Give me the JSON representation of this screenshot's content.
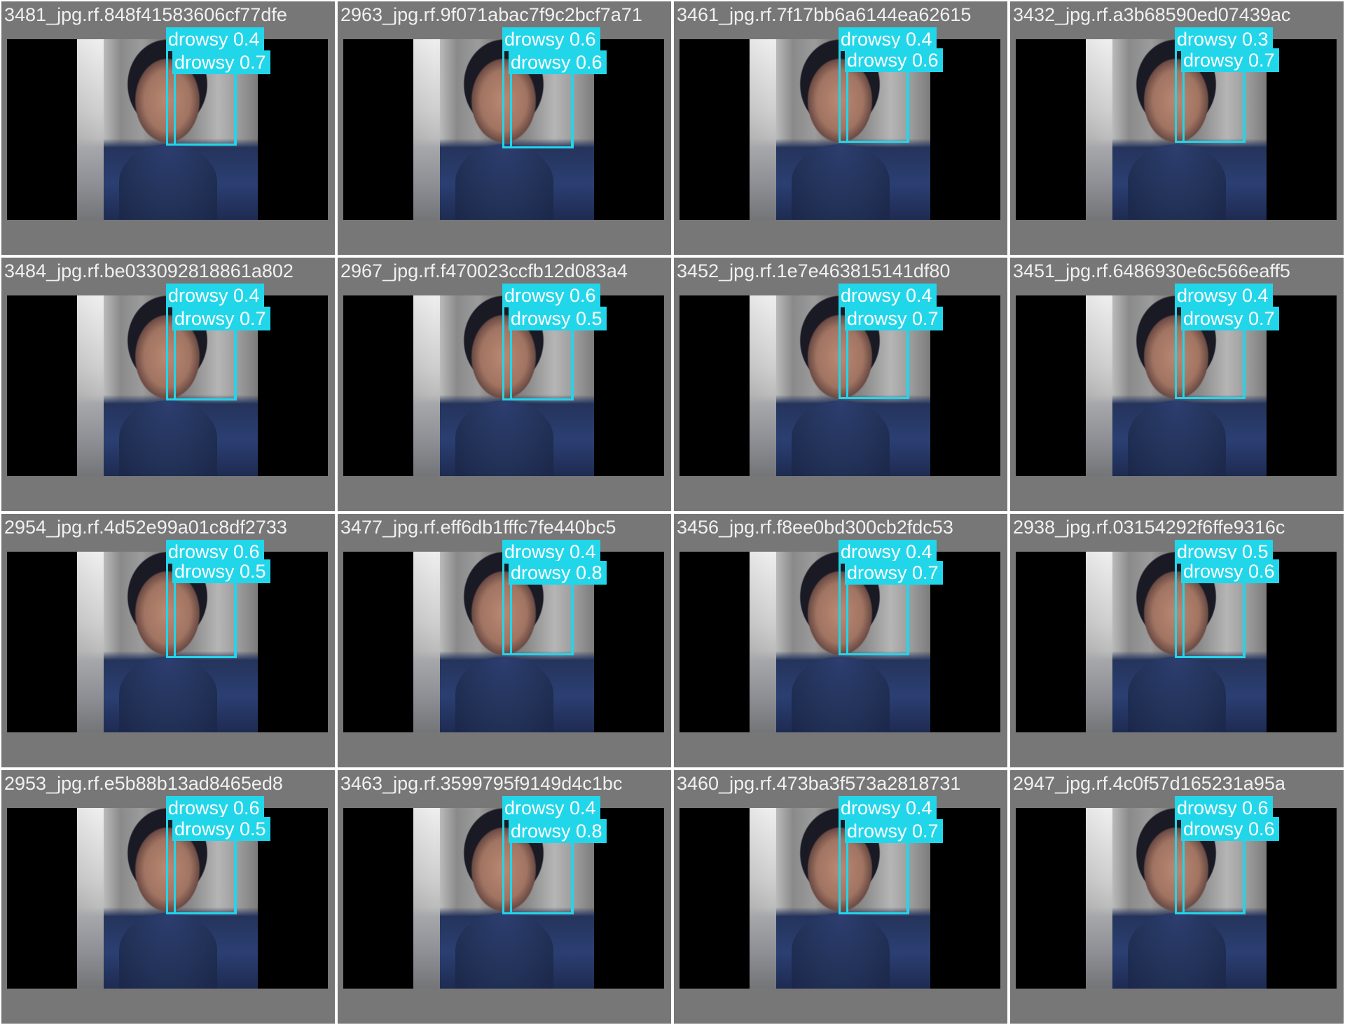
{
  "tiles": [
    {
      "filename": "3481_jpg.rf.848f41583606cf77dfe",
      "labels": [
        "drowsy 0.4",
        "drowsy 0.7"
      ]
    },
    {
      "filename": "2963_jpg.rf.9f071abac7f9c2bcf7a71",
      "labels": [
        "drowsy 0.6",
        "drowsy 0.6"
      ]
    },
    {
      "filename": "3461_jpg.rf.7f17bb6a6144ea62615",
      "labels": [
        "drowsy 0.4",
        "drowsy 0.6"
      ]
    },
    {
      "filename": "3432_jpg.rf.a3b68590ed07439ac",
      "labels": [
        "drowsy 0.3",
        "drowsy 0.7"
      ]
    },
    {
      "filename": "3484_jpg.rf.be033092818861a802",
      "labels": [
        "drowsy 0.4",
        "drowsy 0.7"
      ]
    },
    {
      "filename": "2967_jpg.rf.f470023ccfb12d083a4",
      "labels": [
        "drowsy 0.6",
        "drowsy 0.5"
      ]
    },
    {
      "filename": "3452_jpg.rf.1e7e463815141df80",
      "labels": [
        "drowsy 0.4",
        "drowsy 0.7"
      ]
    },
    {
      "filename": "3451_jpg.rf.6486930e6c566eaff5",
      "labels": [
        "drowsy 0.4",
        "drowsy 0.7"
      ]
    },
    {
      "filename": "2954_jpg.rf.4d52e99a01c8df2733",
      "labels": [
        "drowsy 0.6",
        "drowsy 0.5"
      ]
    },
    {
      "filename": "3477_jpg.rf.eff6db1fffc7fe440bc5",
      "labels": [
        "drowsy 0.4",
        "drowsy 0.8"
      ]
    },
    {
      "filename": "3456_jpg.rf.f8ee0bd300cb2fdc53",
      "labels": [
        "drowsy 0.4",
        "drowsy 0.7"
      ]
    },
    {
      "filename": "2938_jpg.rf.03154292f6ffe9316c",
      "labels": [
        "drowsy 0.5",
        "drowsy 0.6"
      ]
    },
    {
      "filename": "2953_jpg.rf.e5b88b13ad8465ed8",
      "labels": [
        "drowsy 0.6",
        "drowsy 0.5"
      ]
    },
    {
      "filename": "3463_jpg.rf.3599795f9149d4c1bc",
      "labels": [
        "drowsy 0.4",
        "drowsy 0.8"
      ]
    },
    {
      "filename": "3460_jpg.rf.473ba3f573a2818731",
      "labels": [
        "drowsy 0.4",
        "drowsy 0.7"
      ]
    },
    {
      "filename": "2947_jpg.rf.4c0f57d165231a95a",
      "labels": [
        "drowsy 0.6",
        "drowsy 0.6"
      ]
    }
  ],
  "colors": {
    "box": "#23d4ea",
    "label_bg": "#22d6ea",
    "padding": "#777777",
    "letterbox": "#000000"
  }
}
